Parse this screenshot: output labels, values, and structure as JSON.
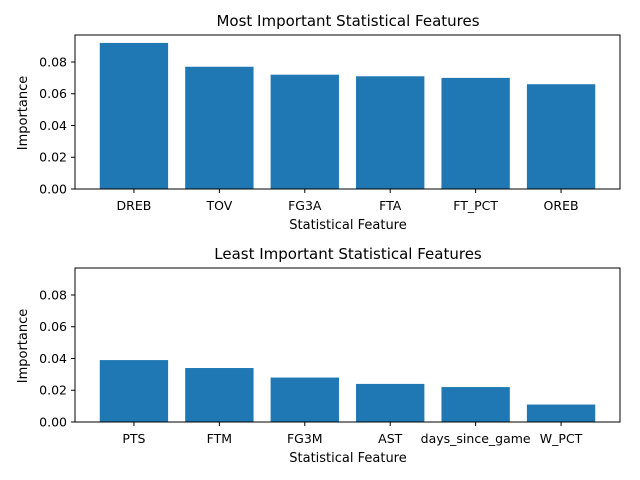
{
  "chart_data": [
    {
      "type": "bar",
      "title": "Most Important Statistical Features",
      "xlabel": "Statistical Feature",
      "ylabel": "Importance",
      "categories": [
        "DREB",
        "TOV",
        "FG3A",
        "FTA",
        "FT_PCT",
        "OREB"
      ],
      "values": [
        0.092,
        0.077,
        0.072,
        0.071,
        0.07,
        0.066
      ],
      "ylim": [
        0,
        0.097
      ],
      "yticks": [
        "0.00",
        "0.02",
        "0.04",
        "0.06",
        "0.08"
      ],
      "bar_color": "#1f77b4",
      "grid": false
    },
    {
      "type": "bar",
      "title": "Least Important Statistical Features",
      "xlabel": "Statistical Feature",
      "ylabel": "Importance",
      "categories": [
        "PTS",
        "FTM",
        "FG3M",
        "AST",
        "days_since_game",
        "W_PCT"
      ],
      "values": [
        0.039,
        0.034,
        0.028,
        0.024,
        0.022,
        0.011
      ],
      "ylim": [
        0,
        0.097
      ],
      "yticks": [
        "0.00",
        "0.02",
        "0.04",
        "0.06",
        "0.08"
      ],
      "bar_color": "#1f77b4",
      "grid": false
    }
  ]
}
